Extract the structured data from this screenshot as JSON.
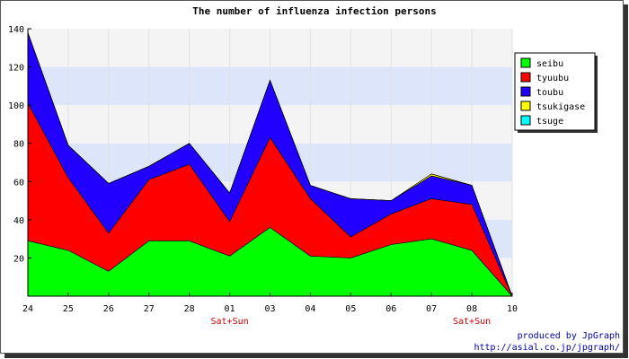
{
  "chart_data": {
    "type": "area",
    "stacked": true,
    "title": "The number of influenza infection persons",
    "categories": [
      "24",
      "25",
      "26",
      "27",
      "28",
      "01",
      "03",
      "04",
      "05",
      "06",
      "07",
      "08",
      "10"
    ],
    "category_sublabels": [
      "",
      "",
      "",
      "",
      "",
      "Sat+Sun",
      "",
      "",
      "",
      "",
      "",
      "Sat+Sun",
      ""
    ],
    "ylim": [
      0,
      140
    ],
    "yticks": [
      20,
      40,
      60,
      80,
      100,
      120,
      140
    ],
    "grid": true,
    "legend_position": "right",
    "series": [
      {
        "name": "seibu",
        "color": "#00ff00",
        "values": [
          29,
          24,
          13,
          29,
          29,
          21,
          36,
          21,
          20,
          27,
          30,
          24,
          0
        ]
      },
      {
        "name": "tyuubu",
        "color": "#ff0000",
        "values": [
          72,
          38,
          20,
          32,
          40,
          18,
          47,
          30,
          11,
          16,
          21,
          24,
          0
        ]
      },
      {
        "name": "toubu",
        "color": "#2200ff",
        "values": [
          37,
          17,
          26,
          7,
          11,
          15,
          30,
          7,
          20,
          7,
          12,
          10,
          0
        ]
      },
      {
        "name": "tsukigase",
        "color": "#ffff00",
        "values": [
          0,
          0,
          0,
          0,
          0,
          0,
          0,
          0,
          0,
          0,
          1,
          0,
          0
        ]
      },
      {
        "name": "tsuge",
        "color": "#00ffff",
        "values": [
          0,
          0,
          0,
          0,
          0,
          0,
          0,
          0,
          0,
          0,
          0,
          0,
          0
        ]
      }
    ]
  },
  "credit": {
    "line1": "produced by JpGraph",
    "line2": "http://asial.co.jp/jpgraph/"
  }
}
